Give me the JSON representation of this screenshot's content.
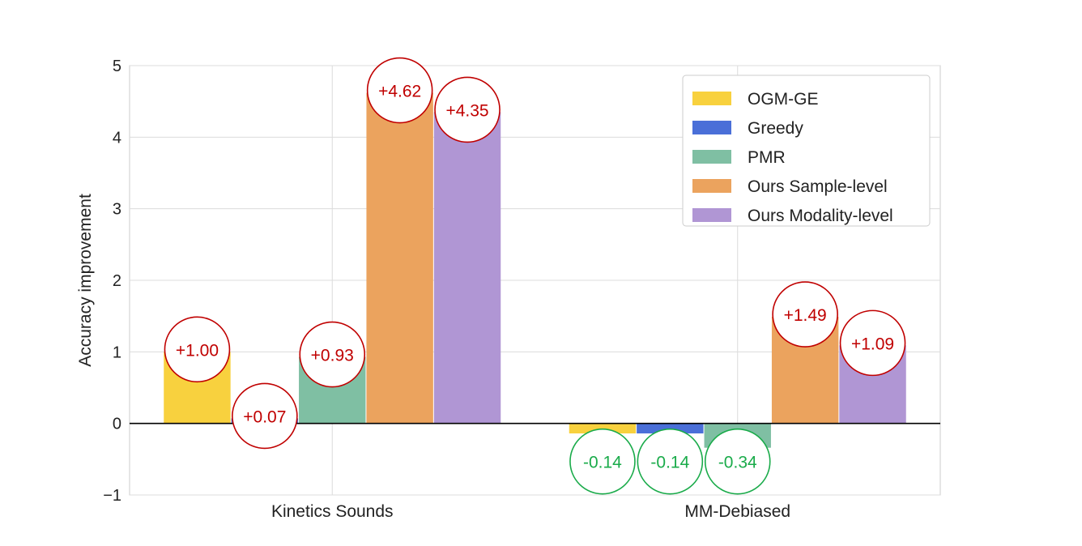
{
  "chart_data": {
    "type": "bar",
    "categories": [
      "Kinetics Sounds",
      "MM-Debiased"
    ],
    "ylabel": "Accuracy improvement",
    "xlabel": "",
    "ylim": [
      -1,
      5
    ],
    "yticks": [
      "−1",
      "0",
      "1",
      "2",
      "3",
      "4",
      "5"
    ],
    "grid": true,
    "legend_position": "top-right",
    "series": [
      {
        "name": "OGM-GE",
        "color": "#f8d13e",
        "values": [
          1.0,
          -0.14
        ],
        "labels": [
          "+1.00",
          "-0.14"
        ]
      },
      {
        "name": "Greedy",
        "color": "#4a6fd8",
        "values": [
          0.07,
          -0.14
        ],
        "labels": [
          "+0.07",
          "-0.14"
        ]
      },
      {
        "name": "PMR",
        "color": "#7fbfa3",
        "values": [
          0.93,
          -0.34
        ],
        "labels": [
          "+0.93",
          "-0.34"
        ]
      },
      {
        "name": "Ours Sample-level",
        "color": "#eba35e",
        "values": [
          4.62,
          1.49
        ],
        "labels": [
          "+4.62",
          "+1.49"
        ]
      },
      {
        "name": "Ours Modality-level",
        "color": "#b096d4",
        "values": [
          4.35,
          1.09
        ],
        "labels": [
          "+4.35",
          "+1.09"
        ]
      }
    ],
    "positive_label_color": "#c00000",
    "negative_label_color": "#1aab4a"
  }
}
